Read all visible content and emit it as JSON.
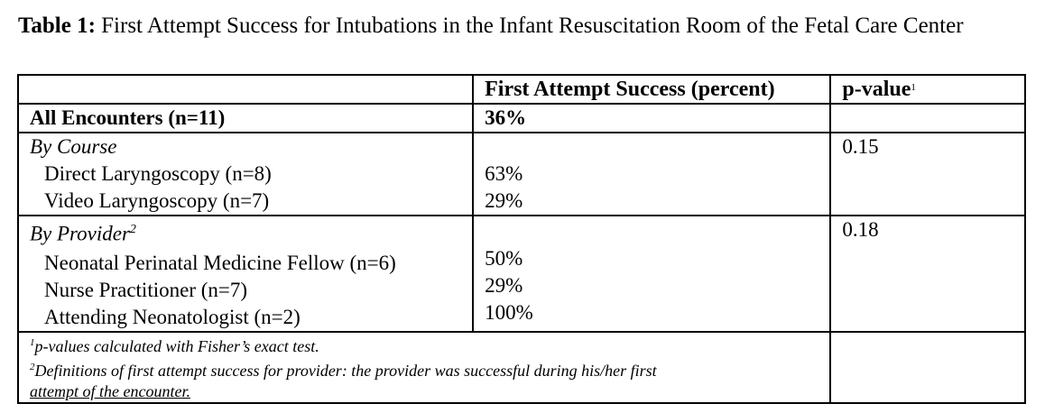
{
  "caption": {
    "label": "Table 1:",
    "text": " First Attempt Success for Intubations in the Infant Resuscitation Room of the Fetal Care Center"
  },
  "header": {
    "col1": "",
    "col2": "First Attempt Success (percent)",
    "col3": "p-value",
    "col3_sup": "1"
  },
  "all_encounters": {
    "label": "All Encounters (n=11)",
    "value": "36%",
    "p": ""
  },
  "by_course": {
    "title": "By Course",
    "p": "0.15",
    "items": [
      {
        "label": "Direct Laryngoscopy (n=8)",
        "value": "63%"
      },
      {
        "label": "Video Laryngoscopy (n=7)",
        "value": "29%"
      }
    ]
  },
  "by_provider": {
    "title": "By Provider",
    "title_sup": "2",
    "p": "0.18",
    "items": [
      {
        "label": "Neonatal Perinatal Medicine Fellow (n=6)",
        "value": "50%"
      },
      {
        "label": "Nurse Practitioner (n=7)",
        "value": "29%"
      },
      {
        "label": "Attending Neonatologist (n=2)",
        "value": "100%"
      }
    ]
  },
  "footnotes": {
    "fn1_sup": "1",
    "fn1": "p-values calculated with Fisher’s exact test.",
    "fn2_sup": "2",
    "fn2": "Definitions of first attempt success for provider: the provider was successful during his/her first",
    "fn2_cont": "attempt of the encounter."
  }
}
